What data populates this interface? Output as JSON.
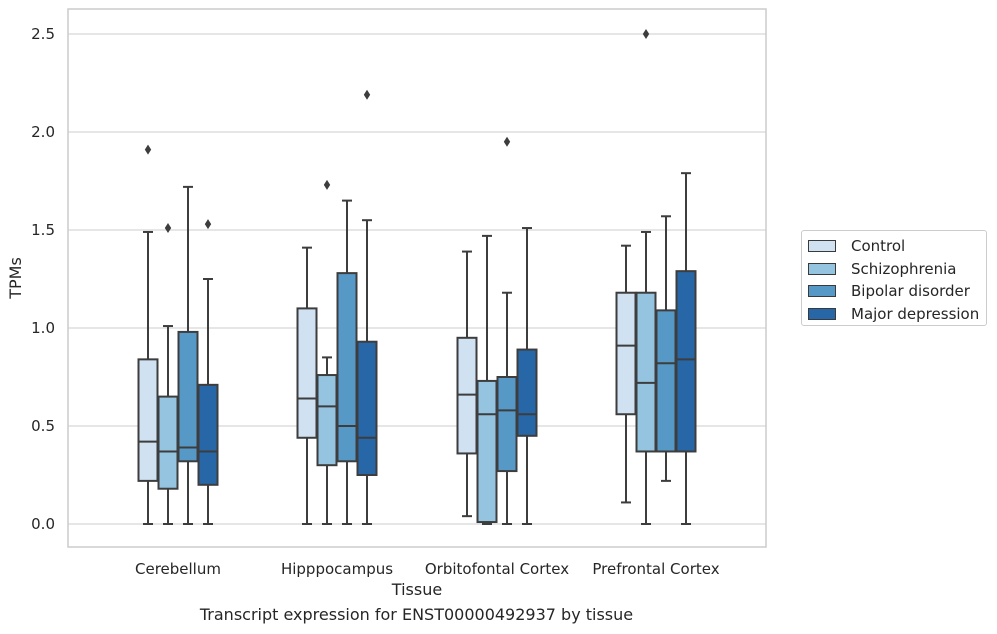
{
  "chart_data": {
    "type": "boxplot",
    "xlabel": "Tissue",
    "ylabel": "TPMs",
    "ylim": [
      -0.12,
      2.63
    ],
    "yticks": [
      "0.0",
      "0.5",
      "1.0",
      "1.5",
      "2.0",
      "2.5"
    ],
    "grid": "horizontal",
    "legend_position": "right",
    "categories": [
      "Cerebellum",
      "Hipppocampus",
      "Orbitofontal Cortex",
      "Prefrontal Cortex"
    ],
    "series": [
      {
        "name": "Control",
        "color": "#d0e1f2",
        "boxes": [
          {
            "whislo": 0.0,
            "q1": 0.22,
            "med": 0.42,
            "q3": 0.84,
            "whishi": 1.49,
            "fliers": [
              1.91
            ]
          },
          {
            "whislo": 0.0,
            "q1": 0.44,
            "med": 0.64,
            "q3": 1.1,
            "whishi": 1.41,
            "fliers": []
          },
          {
            "whislo": 0.04,
            "q1": 0.36,
            "med": 0.66,
            "q3": 0.95,
            "whishi": 1.39,
            "fliers": []
          },
          {
            "whislo": 0.11,
            "q1": 0.56,
            "med": 0.91,
            "q3": 1.18,
            "whishi": 1.42,
            "fliers": []
          }
        ]
      },
      {
        "name": "Schizophrenia",
        "color": "#94c4df",
        "boxes": [
          {
            "whislo": 0.0,
            "q1": 0.18,
            "med": 0.37,
            "q3": 0.65,
            "whishi": 1.01,
            "fliers": [
              1.51
            ]
          },
          {
            "whislo": 0.0,
            "q1": 0.3,
            "med": 0.6,
            "q3": 0.76,
            "whishi": 0.85,
            "fliers": [
              1.73
            ]
          },
          {
            "whislo": 0.0,
            "q1": 0.01,
            "med": 0.56,
            "q3": 0.73,
            "whishi": 1.47,
            "fliers": []
          },
          {
            "whislo": 0.0,
            "q1": 0.37,
            "med": 0.72,
            "q3": 1.18,
            "whishi": 1.49,
            "fliers": [
              2.5
            ]
          }
        ]
      },
      {
        "name": "Bipolar disorder",
        "color": "#5699c7",
        "boxes": [
          {
            "whislo": 0.0,
            "q1": 0.32,
            "med": 0.39,
            "q3": 0.98,
            "whishi": 1.72,
            "fliers": []
          },
          {
            "whislo": 0.0,
            "q1": 0.32,
            "med": 0.5,
            "q3": 1.28,
            "whishi": 1.65,
            "fliers": []
          },
          {
            "whislo": 0.0,
            "q1": 0.27,
            "med": 0.58,
            "q3": 0.75,
            "whishi": 1.18,
            "fliers": [
              1.95
            ]
          },
          {
            "whislo": 0.22,
            "q1": 0.37,
            "med": 0.82,
            "q3": 1.09,
            "whishi": 1.57,
            "fliers": []
          }
        ]
      },
      {
        "name": "Major depression",
        "color": "#2767a8",
        "boxes": [
          {
            "whislo": 0.0,
            "q1": 0.2,
            "med": 0.37,
            "q3": 0.71,
            "whishi": 1.25,
            "fliers": [
              1.53
            ]
          },
          {
            "whislo": 0.0,
            "q1": 0.25,
            "med": 0.44,
            "q3": 0.93,
            "whishi": 1.55,
            "fliers": [
              2.19
            ]
          },
          {
            "whislo": 0.0,
            "q1": 0.45,
            "med": 0.56,
            "q3": 0.89,
            "whishi": 1.51,
            "fliers": []
          },
          {
            "whislo": 0.0,
            "q1": 0.37,
            "med": 0.84,
            "q3": 1.29,
            "whishi": 1.79,
            "fliers": []
          }
        ]
      }
    ],
    "caption": "Transcript expression for ENST00000492937 by tissue"
  }
}
